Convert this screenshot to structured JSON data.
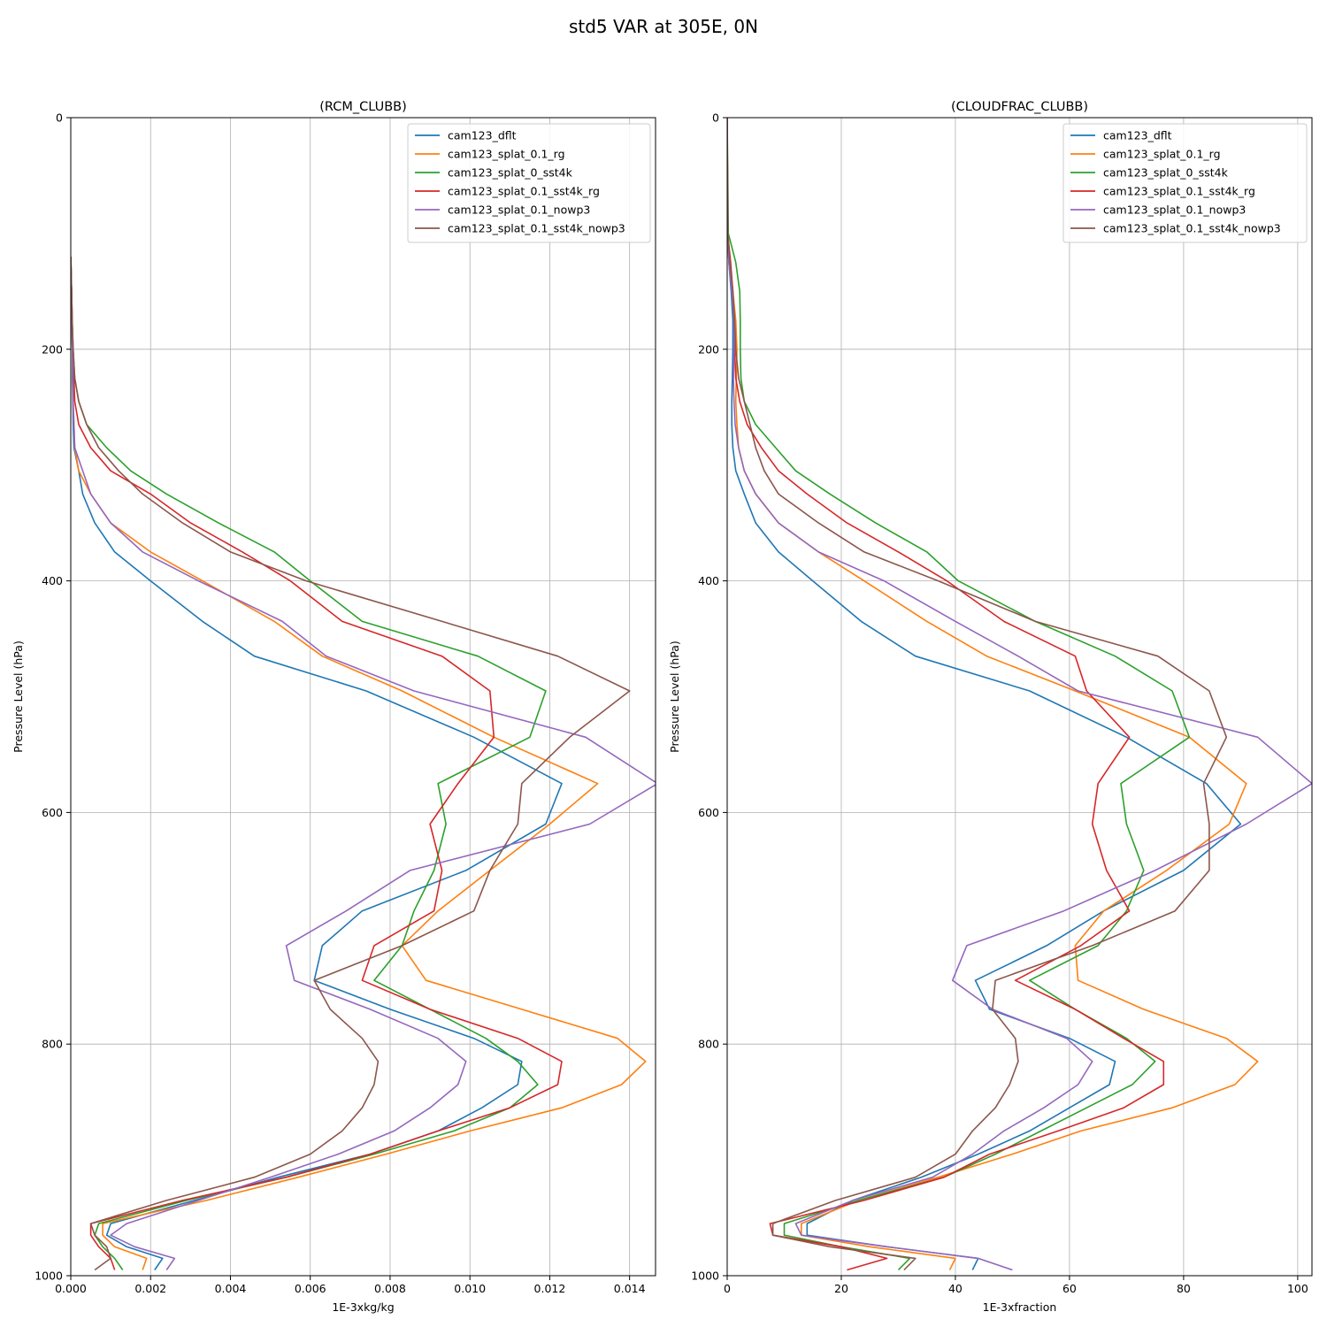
{
  "title": "std5 VAR at 305E, 0N",
  "colors": {
    "cam123_dflt": "#1f77b4",
    "cam123_splat_0.1_rg": "#ff7f0e",
    "cam123_splat_0_sst4k": "#2ca02c",
    "cam123_splat_0.1_sst4k_rg": "#d62728",
    "cam123_splat_0.1_nowp3": "#9467bd",
    "cam123_splat_0.1_sst4k_nowp3": "#8c564b"
  },
  "chart_data": [
    {
      "type": "line",
      "title": "(RCM_CLUBB)",
      "xlabel": "1E-3xkg/kg",
      "ylabel": "Pressure Level (hPa)",
      "xlim": [
        0,
        0.01465
      ],
      "ylim": [
        1000,
        0
      ],
      "xticks": [
        "0.000",
        "0.002",
        "0.004",
        "0.006",
        "0.008",
        "0.010",
        "0.012",
        "0.014"
      ],
      "xtick_values": [
        0,
        0.002,
        0.004,
        0.006,
        0.008,
        0.01,
        0.012,
        0.014
      ],
      "yticks": [
        "0",
        "200",
        "400",
        "600",
        "800",
        "1000"
      ],
      "ytick_values": [
        0,
        200,
        400,
        600,
        800,
        1000
      ],
      "grid": true,
      "legend_position": "top-right",
      "levels": [
        120,
        150,
        180,
        200,
        225,
        245,
        265,
        285,
        305,
        325,
        350,
        375,
        400,
        435,
        465,
        495,
        535,
        575,
        610,
        650,
        685,
        715,
        745,
        770,
        795,
        815,
        835,
        855,
        875,
        895,
        915,
        935,
        955,
        965,
        975,
        985,
        995
      ],
      "series": [
        {
          "name": "cam123_dflt",
          "values": [
            0,
            2e-05,
            3e-05,
            4e-05,
            4e-05,
            5e-05,
            6e-05,
            8e-05,
            0.0002,
            0.0003,
            0.0006,
            0.0011,
            0.002,
            0.0033,
            0.0046,
            0.0074,
            0.0101,
            0.0123,
            0.0119,
            0.0099,
            0.0073,
            0.0063,
            0.0061,
            0.008,
            0.0101,
            0.0113,
            0.0112,
            0.0103,
            0.0092,
            0.0075,
            0.0052,
            0.0031,
            0.001,
            0.0009,
            0.0014,
            0.0023,
            0.0021
          ]
        },
        {
          "name": "cam123_splat_0.1_rg",
          "values": [
            0,
            2e-05,
            3e-05,
            4e-05,
            5e-05,
            6e-05,
            8e-05,
            0.0001,
            0.0002,
            0.0005,
            0.001,
            0.002,
            0.0033,
            0.0051,
            0.0063,
            0.0083,
            0.0106,
            0.0132,
            0.012,
            0.0105,
            0.0092,
            0.0083,
            0.0089,
            0.0113,
            0.0137,
            0.0144,
            0.0138,
            0.0123,
            0.01,
            0.0079,
            0.0057,
            0.0034,
            0.0008,
            0.0008,
            0.0011,
            0.0019,
            0.0018
          ]
        },
        {
          "name": "cam123_splat_0_sst4k",
          "values": [
            0,
            2e-05,
            4e-05,
            6e-05,
            0.0001,
            0.0002,
            0.0004,
            0.0009,
            0.0015,
            0.0024,
            0.0037,
            0.0051,
            0.006,
            0.0073,
            0.0102,
            0.0119,
            0.0115,
            0.0092,
            0.0094,
            0.0091,
            0.0086,
            0.0083,
            0.0076,
            0.009,
            0.0104,
            0.0112,
            0.0117,
            0.011,
            0.0096,
            0.0076,
            0.0054,
            0.0029,
            0.0007,
            0.0006,
            0.0008,
            0.0011,
            0.0013
          ]
        },
        {
          "name": "cam123_splat_0.1_sst4k_rg",
          "values": [
            0,
            2e-05,
            4e-05,
            5e-05,
            8e-05,
            0.0001,
            0.0002,
            0.0005,
            0.001,
            0.002,
            0.003,
            0.0043,
            0.0055,
            0.0068,
            0.0093,
            0.0105,
            0.0106,
            0.0097,
            0.009,
            0.0093,
            0.0091,
            0.0076,
            0.0073,
            0.009,
            0.0112,
            0.0123,
            0.0122,
            0.011,
            0.0092,
            0.0075,
            0.0054,
            0.0028,
            0.0005,
            0.0005,
            0.0007,
            0.001,
            0.0011
          ]
        },
        {
          "name": "cam123_splat_0.1_nowp3",
          "values": [
            0,
            2e-05,
            3e-05,
            4e-05,
            5e-05,
            6e-05,
            8e-05,
            0.0001,
            0.0003,
            0.0005,
            0.001,
            0.0018,
            0.0032,
            0.0053,
            0.0064,
            0.0086,
            0.0129,
            0.0147,
            0.013,
            0.0085,
            0.0069,
            0.0054,
            0.0056,
            0.0075,
            0.0092,
            0.0099,
            0.0097,
            0.009,
            0.0081,
            0.0067,
            0.005,
            0.0032,
            0.0014,
            0.001,
            0.0016,
            0.0026,
            0.0024
          ]
        },
        {
          "name": "cam123_splat_0.1_sst4k_nowp3",
          "values": [
            0,
            2e-05,
            4e-05,
            6e-05,
            0.0001,
            0.0002,
            0.0004,
            0.0007,
            0.0012,
            0.0018,
            0.0028,
            0.004,
            0.0059,
            0.0093,
            0.0122,
            0.014,
            0.0125,
            0.0113,
            0.0112,
            0.0105,
            0.0101,
            0.0083,
            0.0061,
            0.0065,
            0.0073,
            0.0077,
            0.0076,
            0.0073,
            0.0068,
            0.006,
            0.0046,
            0.0024,
            0.0005,
            0.0006,
            0.0009,
            0.001,
            0.0006
          ]
        }
      ]
    },
    {
      "type": "line",
      "title": "(CLOUDFRAC_CLUBB)",
      "xlabel": "1E-3xfraction",
      "ylabel": "Pressure Level (hPa)",
      "xlim": [
        0,
        102.5
      ],
      "ylim": [
        1000,
        0
      ],
      "xticks": [
        "0",
        "20",
        "40",
        "60",
        "80",
        "100"
      ],
      "xtick_values": [
        0,
        20,
        40,
        60,
        80,
        100
      ],
      "yticks": [
        "0",
        "200",
        "400",
        "600",
        "800",
        "1000"
      ],
      "ytick_values": [
        0,
        200,
        400,
        600,
        800,
        1000
      ],
      "grid": true,
      "legend_position": "top-right",
      "levels": [
        0,
        100,
        125,
        150,
        175,
        200,
        225,
        245,
        265,
        285,
        305,
        325,
        350,
        375,
        400,
        435,
        465,
        495,
        535,
        575,
        610,
        650,
        685,
        715,
        745,
        770,
        795,
        815,
        835,
        855,
        875,
        895,
        915,
        935,
        955,
        965,
        975,
        985,
        995
      ],
      "series": [
        {
          "name": "cam123_dflt",
          "values": [
            0,
            0.1,
            0.3,
            0.7,
            1.0,
            1.0,
            0.9,
            0.8,
            0.8,
            1.0,
            1.5,
            3.0,
            5.0,
            9.0,
            15.0,
            23.5,
            33.0,
            53.0,
            70.0,
            84.0,
            90.0,
            80.0,
            66.0,
            56.0,
            43.5,
            46.0,
            60.0,
            68.0,
            67.0,
            60.0,
            53.0,
            44.0,
            34.0,
            22.0,
            14.0,
            14.0,
            28.0,
            44.0,
            43.0
          ]
        },
        {
          "name": "cam123_splat_0.1_rg",
          "values": [
            0,
            0.1,
            0.4,
            1.0,
            1.5,
            1.7,
            1.6,
            1.5,
            1.7,
            2.0,
            3.0,
            5.0,
            9.0,
            16.0,
            24.0,
            35.0,
            45.5,
            61.0,
            81.0,
            91.0,
            88.0,
            77.0,
            66.0,
            61.0,
            61.5,
            73.0,
            87.5,
            93.0,
            89.0,
            78.0,
            62.0,
            50.0,
            37.0,
            23.0,
            13.0,
            13.0,
            25.0,
            40.0,
            39.0
          ]
        },
        {
          "name": "cam123_splat_0_sst4k",
          "values": [
            0,
            0.2,
            1.5,
            2.2,
            2.3,
            2.3,
            2.4,
            3.0,
            5.0,
            8.5,
            12.0,
            18.0,
            26.0,
            35.0,
            40.5,
            54.0,
            68.0,
            78.0,
            81.0,
            69.0,
            70.0,
            73.0,
            70.0,
            65.0,
            53.0,
            61.0,
            70.0,
            75.0,
            71.0,
            63.0,
            55.0,
            47.0,
            38.0,
            23.0,
            10.0,
            10.0,
            20.0,
            32.0,
            30.0
          ]
        },
        {
          "name": "cam123_splat_0.1_sst4k_rg",
          "values": [
            0,
            0.1,
            0.6,
            1.0,
            1.2,
            1.3,
            1.5,
            2.2,
            3.5,
            6.0,
            9.0,
            14.0,
            21.0,
            30.0,
            38.5,
            48.5,
            61.0,
            63.0,
            70.5,
            65.0,
            64.0,
            66.5,
            70.5,
            62.0,
            50.5,
            61.0,
            69.5,
            76.5,
            76.5,
            69.5,
            58.0,
            46.0,
            38.0,
            24.0,
            7.5,
            8.0,
            20.0,
            28.0,
            21.0
          ]
        },
        {
          "name": "cam123_splat_0.1_nowp3",
          "values": [
            0,
            0.1,
            0.3,
            0.8,
            1.2,
            1.2,
            1.1,
            1.2,
            1.4,
            2.0,
            3.0,
            5.0,
            9.0,
            16.0,
            27.5,
            40.0,
            51.0,
            61.5,
            93.0,
            102.5,
            91.0,
            75.0,
            59.0,
            42.0,
            39.5,
            46.5,
            59.5,
            64.0,
            61.5,
            55.5,
            48.5,
            43.0,
            36.0,
            22.0,
            12.0,
            13.0,
            28.0,
            44.0,
            50.0
          ]
        },
        {
          "name": "cam123_splat_0.1_sst4k_nowp3",
          "values": [
            0,
            0.1,
            0.5,
            1.0,
            1.3,
            1.5,
            2.0,
            3.0,
            4.0,
            5.0,
            6.5,
            9.0,
            16.0,
            24.0,
            37.0,
            54.0,
            75.5,
            84.5,
            87.5,
            83.5,
            84.5,
            84.5,
            78.5,
            64.0,
            47.0,
            46.5,
            50.5,
            51.0,
            49.5,
            47.0,
            43.0,
            40.0,
            33.0,
            19.0,
            8.0,
            8.0,
            18.0,
            33.0,
            31.0
          ]
        }
      ]
    }
  ]
}
